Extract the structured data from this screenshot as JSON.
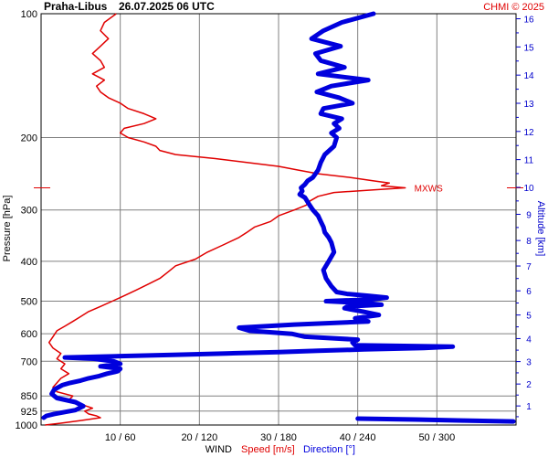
{
  "chart_data": {
    "type": "line",
    "station": "Praha-Libus",
    "timestamp": "26.07.2025 06 UTC",
    "credit": "CHMI © 2025",
    "ylabel_left": "Pressure [hPa]",
    "ylabel_right": "Altitude [km]",
    "xlabel": {
      "title": "WIND",
      "speed": "Speed [m/s]",
      "direction": "Direction [°]"
    },
    "pressure_ticks": [
      "100",
      "200",
      "300",
      "400",
      "500",
      "600",
      "700",
      "850",
      "925",
      "1000"
    ],
    "altitude_ticks": [
      "1",
      "2",
      "3",
      "4",
      "5",
      "6",
      "7",
      "8",
      "9",
      "10",
      "11",
      "12",
      "13",
      "14",
      "15",
      "16"
    ],
    "x_ticks": [
      "10 / 60",
      "20 / 120",
      "30 / 180",
      "40 / 240",
      "50 / 300"
    ],
    "speed_range_ms": [
      0,
      60
    ],
    "direction_range_deg": [
      0,
      360
    ],
    "annotation": "MXWS",
    "max_wind": {
      "pressure": 265,
      "speed": 46
    },
    "colors": {
      "speed": "#e00000",
      "direction": "#0000dd",
      "grid": "#808080",
      "text": "#000000",
      "altitude_axis": "#0000cc",
      "credit": "#e00000"
    },
    "series": [
      {
        "name": "Speed [m/s]",
        "color": "#e00000",
        "points": [
          [
            100,
            9.5
          ],
          [
            105,
            8
          ],
          [
            110,
            7.5
          ],
          [
            115,
            8.5
          ],
          [
            120,
            7.5
          ],
          [
            125,
            6.5
          ],
          [
            130,
            7.5
          ],
          [
            135,
            8
          ],
          [
            140,
            6.5
          ],
          [
            145,
            8
          ],
          [
            150,
            7
          ],
          [
            155,
            7.5
          ],
          [
            160,
            8.5
          ],
          [
            165,
            10
          ],
          [
            170,
            11
          ],
          [
            175,
            13
          ],
          [
            180,
            14.5
          ],
          [
            185,
            13
          ],
          [
            190,
            10.5
          ],
          [
            195,
            10
          ],
          [
            200,
            11
          ],
          [
            205,
            13
          ],
          [
            210,
            14.5
          ],
          [
            215,
            15
          ],
          [
            220,
            17
          ],
          [
            225,
            22
          ],
          [
            230,
            26
          ],
          [
            235,
            30
          ],
          [
            240,
            32.5
          ],
          [
            245,
            35
          ],
          [
            250,
            39
          ],
          [
            255,
            42
          ],
          [
            258,
            44
          ],
          [
            262,
            43
          ],
          [
            265,
            46
          ],
          [
            268,
            42
          ],
          [
            272,
            37
          ],
          [
            278,
            35
          ],
          [
            285,
            34
          ],
          [
            292,
            33.5
          ],
          [
            300,
            32
          ],
          [
            310,
            30
          ],
          [
            320,
            29
          ],
          [
            330,
            27
          ],
          [
            340,
            26
          ],
          [
            350,
            25
          ],
          [
            365,
            23
          ],
          [
            380,
            21
          ],
          [
            395,
            19.5
          ],
          [
            410,
            17
          ],
          [
            425,
            16
          ],
          [
            440,
            15
          ],
          [
            455,
            13.5
          ],
          [
            470,
            12
          ],
          [
            485,
            10.5
          ],
          [
            500,
            9
          ],
          [
            515,
            7.5
          ],
          [
            530,
            6
          ],
          [
            545,
            5
          ],
          [
            560,
            4
          ],
          [
            575,
            3
          ],
          [
            590,
            2
          ],
          [
            610,
            1.5
          ],
          [
            630,
            1
          ],
          [
            650,
            1.5
          ],
          [
            670,
            2.5
          ],
          [
            690,
            2
          ],
          [
            710,
            3
          ],
          [
            730,
            2.5
          ],
          [
            750,
            3.5
          ],
          [
            770,
            2.5
          ],
          [
            790,
            2
          ],
          [
            810,
            1.5
          ],
          [
            830,
            2
          ],
          [
            850,
            4
          ],
          [
            870,
            3.5
          ],
          [
            890,
            5
          ],
          [
            910,
            6.5
          ],
          [
            925,
            5.5
          ],
          [
            940,
            6
          ],
          [
            950,
            7
          ],
          [
            960,
            7.5
          ],
          [
            975,
            5
          ],
          [
            990,
            2.5
          ],
          [
            1000,
            0.5
          ]
        ]
      },
      {
        "name": "Direction [°]",
        "color": "#0000dd",
        "points": [
          [
            100,
            252
          ],
          [
            105,
            228
          ],
          [
            110,
            214
          ],
          [
            115,
            205
          ],
          [
            120,
            227
          ],
          [
            125,
            208
          ],
          [
            130,
            212
          ],
          [
            135,
            230
          ],
          [
            140,
            210
          ],
          [
            145,
            248
          ],
          [
            150,
            220
          ],
          [
            155,
            209
          ],
          [
            160,
            226
          ],
          [
            165,
            236
          ],
          [
            170,
            214
          ],
          [
            175,
            212
          ],
          [
            180,
            228
          ],
          [
            185,
            222
          ],
          [
            190,
            226
          ],
          [
            195,
            220
          ],
          [
            200,
            224
          ],
          [
            210,
            222
          ],
          [
            220,
            215
          ],
          [
            230,
            212
          ],
          [
            240,
            210
          ],
          [
            250,
            206
          ],
          [
            255,
            202
          ],
          [
            260,
            200
          ],
          [
            265,
            197
          ],
          [
            270,
            198
          ],
          [
            275,
            196
          ],
          [
            280,
            200
          ],
          [
            290,
            203
          ],
          [
            300,
            206
          ],
          [
            310,
            210
          ],
          [
            320,
            212
          ],
          [
            330,
            214
          ],
          [
            340,
            215
          ],
          [
            350,
            218
          ],
          [
            360,
            220
          ],
          [
            380,
            222
          ],
          [
            400,
            218
          ],
          [
            420,
            214
          ],
          [
            440,
            216
          ],
          [
            460,
            220
          ],
          [
            475,
            224
          ],
          [
            480,
            232
          ],
          [
            485,
            248
          ],
          [
            490,
            262
          ],
          [
            495,
            250
          ],
          [
            500,
            216
          ],
          [
            505,
            245
          ],
          [
            510,
            258
          ],
          [
            515,
            232
          ],
          [
            520,
            230
          ],
          [
            530,
            244
          ],
          [
            540,
            256
          ],
          [
            550,
            238
          ],
          [
            560,
            248
          ],
          [
            570,
            192
          ],
          [
            580,
            150
          ],
          [
            590,
            158
          ],
          [
            600,
            190
          ],
          [
            610,
            200
          ],
          [
            620,
            240
          ],
          [
            630,
            236
          ],
          [
            640,
            238
          ],
          [
            645,
            312
          ],
          [
            650,
            290
          ],
          [
            655,
            245
          ],
          [
            660,
            210
          ],
          [
            665,
            180
          ],
          [
            670,
            140
          ],
          [
            675,
            100
          ],
          [
            680,
            60
          ],
          [
            685,
            18
          ],
          [
            690,
            40
          ],
          [
            700,
            55
          ],
          [
            710,
            60
          ],
          [
            720,
            45
          ],
          [
            730,
            60
          ],
          [
            740,
            58
          ],
          [
            750,
            50
          ],
          [
            760,
            44
          ],
          [
            770,
            36
          ],
          [
            780,
            30
          ],
          [
            790,
            22
          ],
          [
            800,
            16
          ],
          [
            820,
            10
          ],
          [
            840,
            8
          ],
          [
            860,
            12
          ],
          [
            880,
            26
          ],
          [
            900,
            32
          ],
          [
            920,
            26
          ],
          [
            930,
            18
          ],
          [
            940,
            10
          ],
          [
            950,
            4
          ],
          [
            960,
            2
          ],
          [
            965,
            240
          ],
          [
            970,
            284
          ],
          [
            975,
            320
          ],
          [
            980,
            358
          ]
        ]
      }
    ]
  }
}
